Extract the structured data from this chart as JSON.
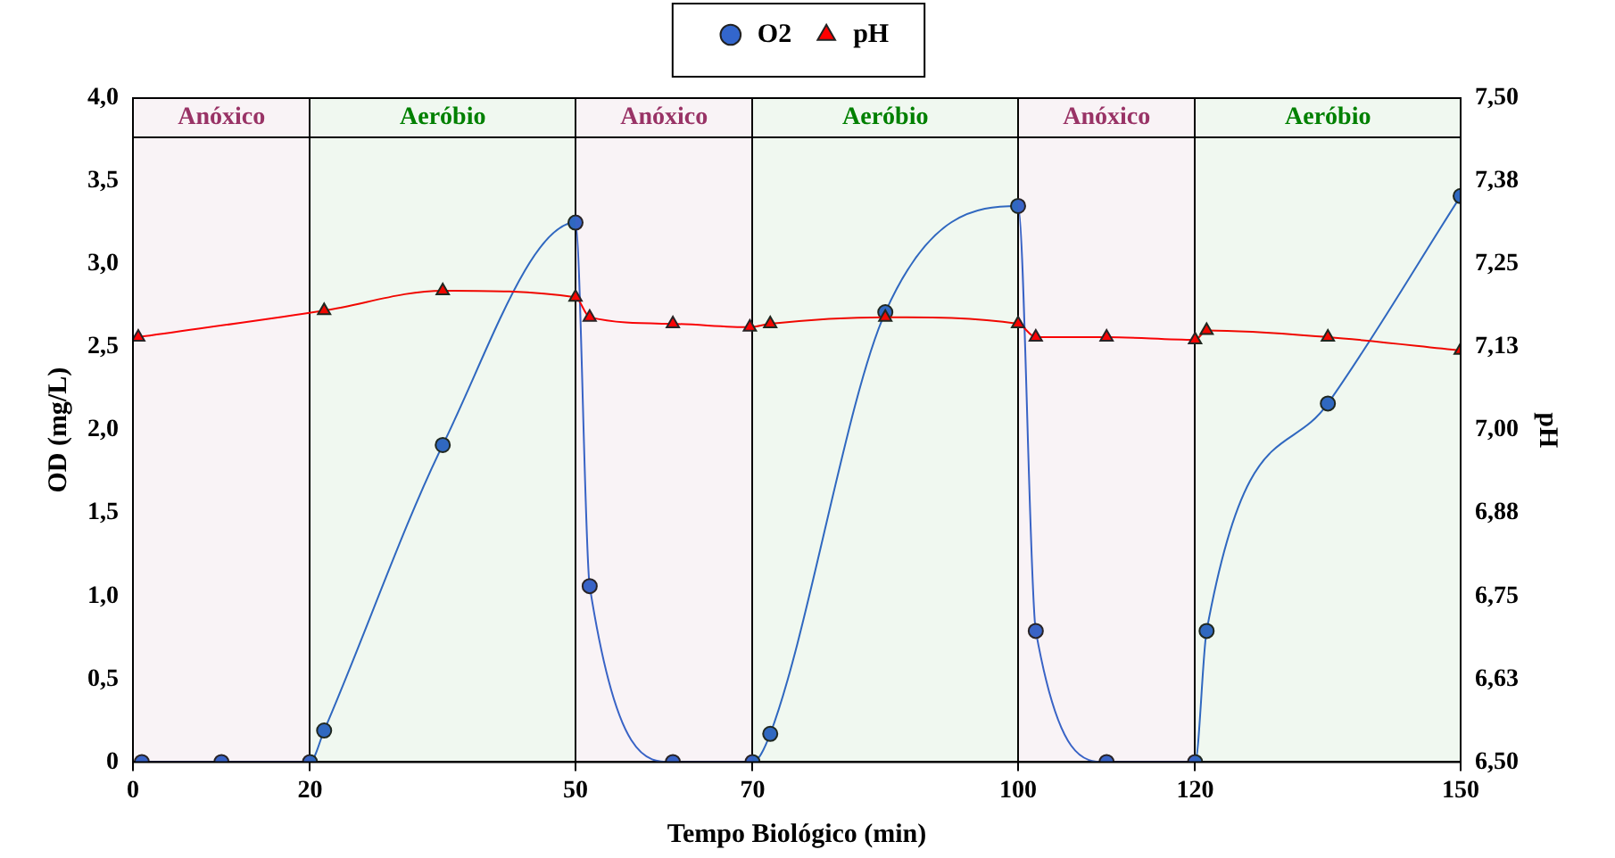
{
  "chart_data": {
    "type": "line",
    "xlabel": "Tempo Biológico (min)",
    "ylabel": "OD (mg/L)",
    "y2label": "pH",
    "xlim": [
      0,
      150
    ],
    "xticks": [
      0,
      20,
      50,
      70,
      100,
      120,
      150
    ],
    "ylim": [
      0,
      4
    ],
    "yticks": [
      0,
      {
        "value": 0.5,
        "label": "0,5"
      },
      {
        "value": 1,
        "label": "1,0"
      },
      {
        "value": 1.5,
        "label": "1,5"
      },
      {
        "value": 2,
        "label": "2,0"
      },
      {
        "value": 2.5,
        "label": "2,5"
      },
      {
        "value": 3,
        "label": "3,0"
      },
      {
        "value": 3.5,
        "label": "3,5"
      },
      {
        "value": 4,
        "label": "4,0"
      }
    ],
    "y2lim": [
      6.5,
      7.5
    ],
    "y2ticks": [
      {
        "value": 6.5,
        "label": "6,50"
      },
      {
        "value": 6.625,
        "label": "6,63"
      },
      {
        "value": 6.75,
        "label": "6,75"
      },
      {
        "value": 6.875,
        "label": "6,88"
      },
      {
        "value": 7,
        "label": "7,00"
      },
      {
        "value": 7.125,
        "label": "7,13"
      },
      {
        "value": 7.25,
        "label": "7,25"
      },
      {
        "value": 7.375,
        "label": "7,38"
      },
      {
        "value": 7.5,
        "label": "7,50"
      }
    ],
    "series": [
      {
        "name": "O2",
        "color": "#3366cc",
        "marker": "circle",
        "x": [
          1,
          10,
          20,
          21.6,
          35,
          50,
          51.6,
          61,
          70,
          72,
          85,
          100,
          102,
          110,
          120,
          121.3,
          135,
          150
        ],
        "values": [
          0,
          0,
          0,
          0.19,
          1.91,
          3.25,
          1.06,
          0,
          0,
          0.17,
          2.71,
          3.35,
          0.79,
          0,
          0,
          0.79,
          2.16,
          3.41
        ]
      },
      {
        "name": "pH",
        "color": "#ff0000",
        "marker": "triangle",
        "axis": "y2",
        "x": [
          0.6,
          21.6,
          35,
          50,
          51.6,
          61,
          69.7,
          72,
          85,
          100,
          102,
          110,
          120,
          121.3,
          135,
          150
        ],
        "values": [
          7.14,
          7.18,
          7.21,
          7.2,
          7.17,
          7.16,
          7.155,
          7.16,
          7.17,
          7.16,
          7.14,
          7.14,
          7.136,
          7.15,
          7.14,
          7.12
        ]
      }
    ],
    "bands": [
      {
        "axis": "x",
        "from": 0,
        "to": 20,
        "label": "Anóxico",
        "color": "#993366"
      },
      {
        "axis": "x",
        "from": 20,
        "to": 50,
        "label": "Aeróbio",
        "color": "#008000"
      },
      {
        "axis": "x",
        "from": 50,
        "to": 70,
        "label": "Anóxico",
        "color": "#993366"
      },
      {
        "axis": "x",
        "from": 70,
        "to": 100,
        "label": "Aeróbio",
        "color": "#008000"
      },
      {
        "axis": "x",
        "from": 100,
        "to": 120,
        "label": "Anóxico",
        "color": "#993366"
      },
      {
        "axis": "x",
        "from": 120,
        "to": 150,
        "label": "Aeróbio",
        "color": "#008000"
      }
    ],
    "legend": "top",
    "grid": "x"
  }
}
